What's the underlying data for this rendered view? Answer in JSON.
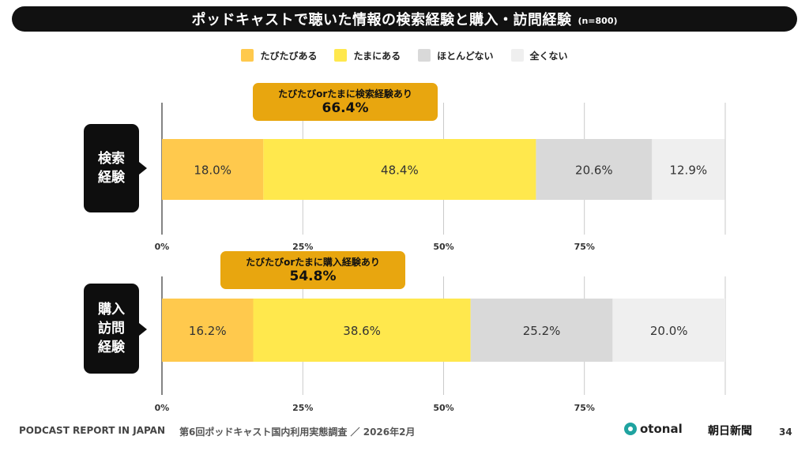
{
  "header": {
    "title": "ポッドキャストで聴いた情報の検索経験と購入・訪問経験",
    "n": "(n=800)"
  },
  "legend": [
    {
      "label": "たびたびある",
      "color": "#ffc94d"
    },
    {
      "label": "たまにある",
      "color": "#ffe84d"
    },
    {
      "label": "ほとんどない",
      "color": "#d9d9d9"
    },
    {
      "label": "全くない",
      "color": "#efefef"
    }
  ],
  "callouts": [
    {
      "line1": "たびたびorたまに検索経験あり",
      "value": "66.4%"
    },
    {
      "line1": "たびたびorたまに購入経験あり",
      "value": "54.8%"
    }
  ],
  "chart_data": {
    "type": "bar",
    "orientation": "horizontal",
    "stacked": true,
    "categories": [
      "検索経験",
      "購入訪問経験"
    ],
    "category_labels": [
      [
        "検索",
        "経験"
      ],
      [
        "購入",
        "訪問",
        "経験"
      ]
    ],
    "series": [
      {
        "name": "たびたびある",
        "values": [
          18.0,
          16.2
        ],
        "color": "#ffc94d"
      },
      {
        "name": "たまにある",
        "values": [
          48.4,
          38.6
        ],
        "color": "#ffe84d"
      },
      {
        "name": "ほとんどない",
        "values": [
          20.6,
          25.2
        ],
        "color": "#d9d9d9"
      },
      {
        "name": "全くない",
        "values": [
          12.9,
          20.0
        ],
        "color": "#efefef"
      }
    ],
    "data_label_suffix": "%",
    "xlim": [
      0,
      100
    ],
    "x_ticks": [
      "0%",
      "25%",
      "50%",
      "75%"
    ],
    "grid": true,
    "legend_position": "top-center"
  },
  "footer": {
    "report": "PODCAST REPORT IN JAPAN",
    "survey": "第6回ポッドキャスト国内利用実態調査 ／ 2026年2月",
    "brand1": "otonal",
    "brand2": "朝日新聞",
    "page": "34"
  }
}
